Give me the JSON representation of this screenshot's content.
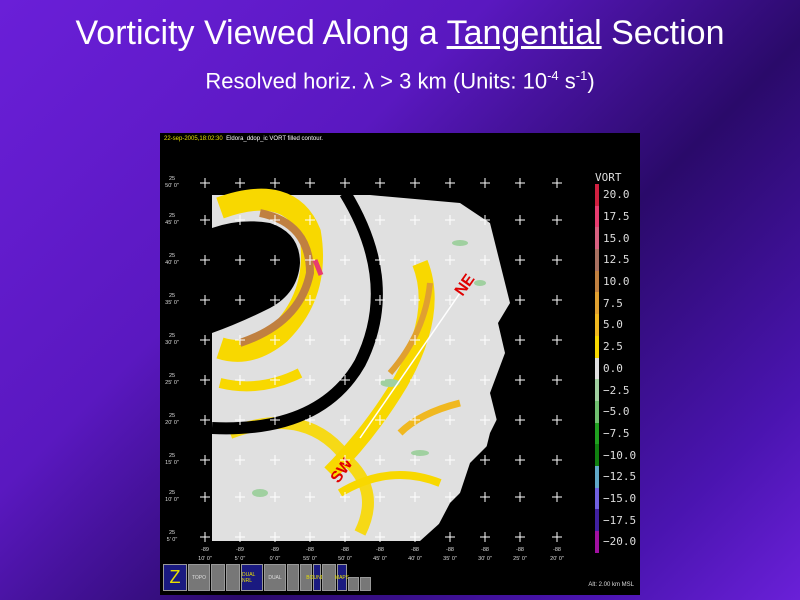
{
  "slide": {
    "title_pre": "Vorticity Viewed Along a ",
    "title_underlined": "Tangential",
    "title_post": " Section",
    "subtitle_pre": "Resolved horiz. λ > 3 km (Units: 10",
    "subtitle_exp1": "-4",
    "subtitle_mid": " s",
    "subtitle_exp2": "-1",
    "subtitle_post": ")"
  },
  "panel": {
    "date": "22-sep-2005,18:02:30",
    "product": "Eldora_ddop_ic VORT filled contour.",
    "lat_labels": [
      [
        "25",
        "50' 0\""
      ],
      [
        "25",
        "45' 0\""
      ],
      [
        "25",
        "40' 0\""
      ],
      [
        "25",
        "35' 0\""
      ],
      [
        "25",
        "30' 0\""
      ],
      [
        "25",
        "25' 0\""
      ],
      [
        "25",
        "20' 0\""
      ],
      [
        "25",
        "15' 0\""
      ],
      [
        "25",
        "10' 0\""
      ],
      [
        "25",
        "5' 0\""
      ]
    ],
    "lon_labels": [
      [
        "-89",
        "10' 0\""
      ],
      [
        "-89",
        "5' 0\""
      ],
      [
        "-89",
        "0' 0\""
      ],
      [
        "-88",
        "55' 0\""
      ],
      [
        "-88",
        "50' 0\""
      ],
      [
        "-88",
        "45' 0\""
      ],
      [
        "-88",
        "40' 0\""
      ],
      [
        "-88",
        "35' 0\""
      ],
      [
        "-88",
        "30' 0\""
      ],
      [
        "-88",
        "25' 0\""
      ],
      [
        "-88",
        "20' 0\""
      ]
    ],
    "section_labels": {
      "start": "SW",
      "end": "NE"
    },
    "altitude": "Alt: 2.00 km MSL"
  },
  "legend": {
    "title": "VORT",
    "levels": [
      {
        "value": "20.0",
        "color": "#d02040"
      },
      {
        "value": "17.5",
        "color": "#e83c70"
      },
      {
        "value": "15.0",
        "color": "#d86080"
      },
      {
        "value": "12.5",
        "color": "#a87060"
      },
      {
        "value": "10.0",
        "color": "#c08040"
      },
      {
        "value": "7.5",
        "color": "#e0a030"
      },
      {
        "value": "5.0",
        "color": "#f0b820"
      },
      {
        "value": "2.5",
        "color": "#f8d800"
      },
      {
        "value": "0.0",
        "color": "#e0e0e0"
      },
      {
        "value": "−2.5",
        "color": "#a0d0a0"
      },
      {
        "value": "−5.0",
        "color": "#70c070"
      },
      {
        "value": "−7.5",
        "color": "#20a020"
      },
      {
        "value": "−10.0",
        "color": "#108010"
      },
      {
        "value": "−12.5",
        "color": "#60a8c8"
      },
      {
        "value": "−15.0",
        "color": "#7060e0"
      },
      {
        "value": "−17.5",
        "color": "#4020a0"
      },
      {
        "value": "−20.0",
        "color": "#a010a0"
      }
    ]
  },
  "toolbar": {
    "buttons": [
      "Z",
      "TOPO",
      "",
      "",
      "DUAL NRL",
      "DUAL",
      "",
      "",
      "BOUNDS",
      "",
      "MAPS",
      "",
      ""
    ]
  }
}
